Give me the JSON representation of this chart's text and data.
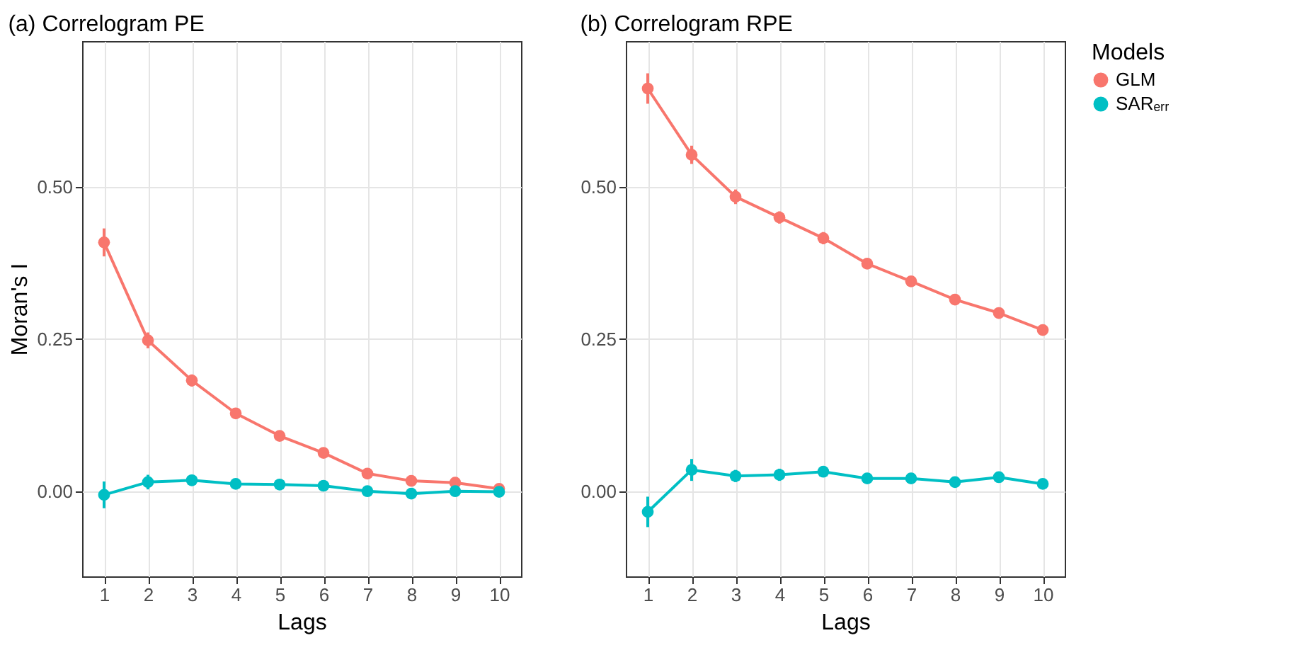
{
  "chart_data": [
    {
      "type": "line",
      "title": "(a) Correlogram PE",
      "xlabel": "Lags",
      "ylabel": "Moran's I",
      "x": [
        1,
        2,
        3,
        4,
        5,
        6,
        7,
        8,
        9,
        10
      ],
      "xlim": [
        0.5,
        10.5
      ],
      "xticks": [
        1,
        2,
        3,
        4,
        5,
        6,
        7,
        8,
        9,
        10
      ],
      "ylim": [
        -0.14,
        0.74
      ],
      "yticks": [
        {
          "value": 0,
          "label": "0.00"
        },
        {
          "value": 0.25,
          "label": "0.25"
        },
        {
          "value": 0.5,
          "label": "0.50"
        }
      ],
      "grid": true,
      "marker": "circle",
      "line_style": "solid",
      "legend": "right",
      "series": [
        {
          "name": "GLM",
          "color": "#f8766d",
          "values": [
            0.409,
            0.248,
            0.182,
            0.128,
            0.091,
            0.063,
            0.029,
            0.017,
            0.014,
            0.004
          ],
          "errors": [
            0.023,
            0.013,
            0.01,
            0.008,
            0.008,
            0.007,
            0.006,
            0.005,
            0.005,
            0.005
          ]
        },
        {
          "name": "SARₑᵣᵣ",
          "color": "#00bfc4",
          "values": [
            -0.006,
            0.015,
            0.018,
            0.012,
            0.011,
            0.009,
            0.0,
            -0.004,
            0.0,
            -0.001
          ],
          "errors": [
            0.022,
            0.012,
            0.009,
            0.008,
            0.008,
            0.007,
            0.006,
            0.005,
            0.005,
            0.005
          ]
        }
      ]
    },
    {
      "type": "line",
      "title": "(b) Correlogram RPE",
      "xlabel": "Lags",
      "legend_title": "Models",
      "x": [
        1,
        2,
        3,
        4,
        5,
        6,
        7,
        8,
        9,
        10
      ],
      "xlim": [
        0.5,
        10.5
      ],
      "xticks": [
        1,
        2,
        3,
        4,
        5,
        6,
        7,
        8,
        9,
        10
      ],
      "ylim": [
        -0.14,
        0.74
      ],
      "yticks": [
        {
          "value": 0,
          "label": "0.00"
        },
        {
          "value": 0.25,
          "label": "0.25"
        },
        {
          "value": 0.5,
          "label": "0.50"
        }
      ],
      "grid": true,
      "marker": "circle",
      "line_style": "solid",
      "legend": "right",
      "series": [
        {
          "name": "GLM",
          "color": "#f8766d",
          "values": [
            0.662,
            0.553,
            0.484,
            0.45,
            0.416,
            0.374,
            0.345,
            0.315,
            0.293,
            0.265
          ],
          "errors": [
            0.025,
            0.015,
            0.012,
            0.01,
            0.01,
            0.008,
            0.008,
            0.008,
            0.008,
            0.007
          ]
        },
        {
          "name": "SARₑᵣᵣ",
          "color": "#00bfc4",
          "values": [
            -0.034,
            0.035,
            0.025,
            0.027,
            0.032,
            0.021,
            0.021,
            0.015,
            0.023,
            0.012
          ],
          "errors": [
            0.025,
            0.018,
            0.01,
            0.01,
            0.009,
            0.008,
            0.008,
            0.007,
            0.007,
            0.007
          ]
        }
      ]
    }
  ]
}
